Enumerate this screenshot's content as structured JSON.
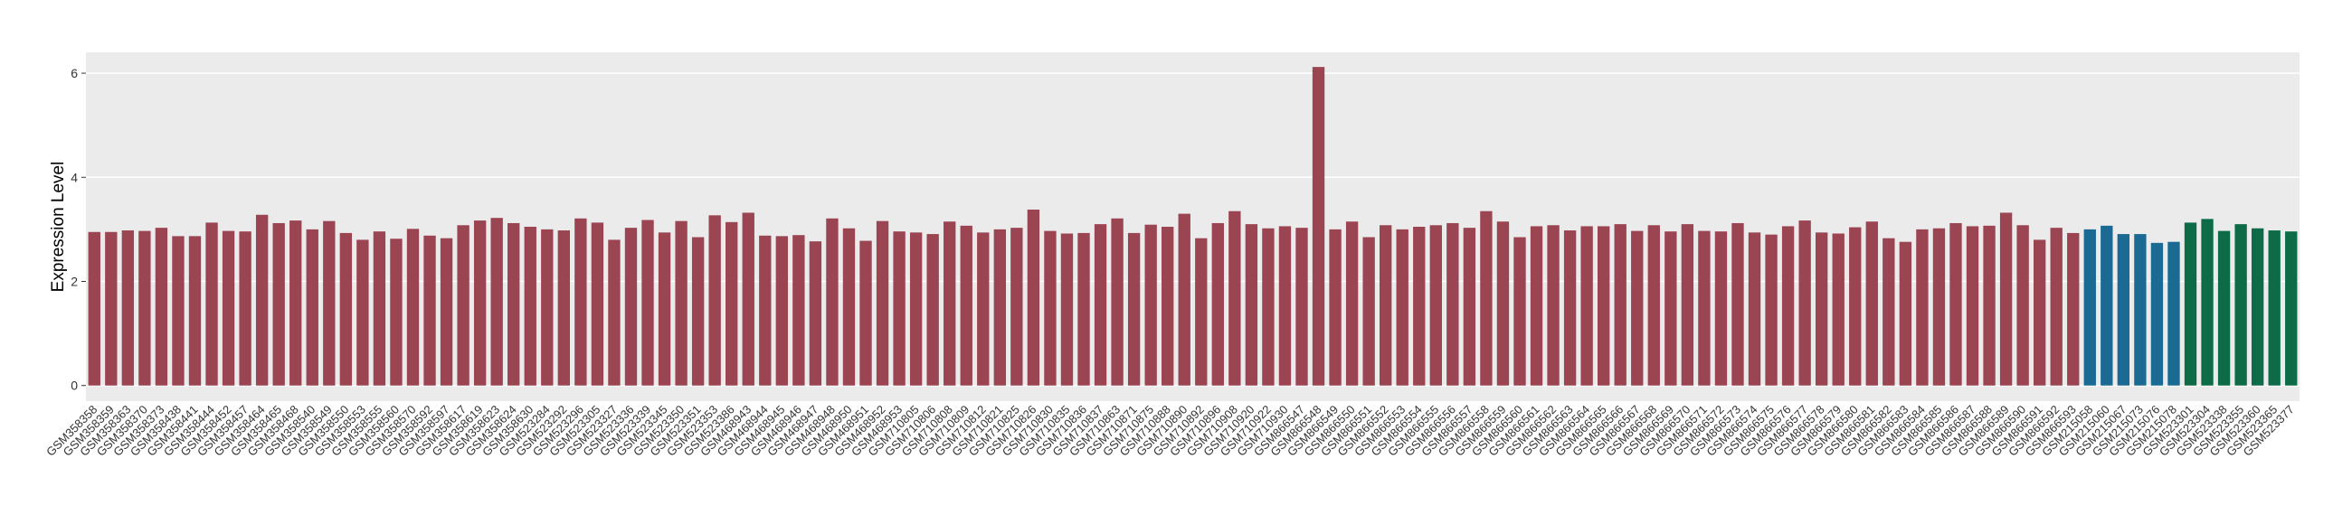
{
  "chart_data": {
    "type": "bar",
    "y_label": "Expression Level",
    "categories": [
      "GSM358358",
      "GSM358359",
      "GSM358363",
      "GSM358370",
      "GSM358373",
      "GSM358438",
      "GSM358441",
      "GSM358444",
      "GSM358452",
      "GSM358457",
      "GSM358464",
      "GSM358465",
      "GSM358468",
      "GSM358540",
      "GSM358549",
      "GSM358550",
      "GSM358553",
      "GSM358555",
      "GSM358560",
      "GSM358570",
      "GSM358592",
      "GSM358597",
      "GSM358617",
      "GSM358619",
      "GSM358623",
      "GSM358624",
      "GSM358630",
      "GSM523284",
      "GSM523292",
      "GSM523296",
      "GSM523305",
      "GSM523327",
      "GSM523336",
      "GSM523339",
      "GSM523345",
      "GSM523350",
      "GSM523351",
      "GSM523353",
      "GSM523386",
      "GSM468943",
      "GSM468944",
      "GSM468945",
      "GSM468946",
      "GSM468947",
      "GSM468948",
      "GSM468950",
      "GSM468951",
      "GSM468952",
      "GSM468953",
      "GSM710805",
      "GSM710806",
      "GSM710808",
      "GSM710809",
      "GSM710812",
      "GSM710821",
      "GSM710825",
      "GSM710826",
      "GSM710830",
      "GSM710835",
      "GSM710836",
      "GSM710837",
      "GSM710863",
      "GSM710871",
      "GSM710875",
      "GSM710888",
      "GSM710890",
      "GSM710892",
      "GSM710896",
      "GSM710908",
      "GSM710920",
      "GSM710922",
      "GSM710930",
      "GSM866547",
      "GSM866548",
      "GSM866549",
      "GSM866550",
      "GSM866551",
      "GSM866552",
      "GSM866553",
      "GSM866554",
      "GSM866555",
      "GSM866556",
      "GSM866557",
      "GSM866558",
      "GSM866559",
      "GSM866560",
      "GSM866561",
      "GSM866562",
      "GSM866563",
      "GSM866564",
      "GSM866565",
      "GSM866566",
      "GSM866567",
      "GSM866568",
      "GSM866569",
      "GSM866570",
      "GSM866571",
      "GSM866572",
      "GSM866573",
      "GSM866574",
      "GSM866575",
      "GSM866576",
      "GSM866577",
      "GSM866578",
      "GSM866579",
      "GSM866580",
      "GSM866581",
      "GSM866582",
      "GSM866583",
      "GSM866584",
      "GSM866585",
      "GSM866586",
      "GSM866587",
      "GSM866588",
      "GSM866589",
      "GSM866590",
      "GSM866591",
      "GSM866592",
      "GSM866593",
      "GSM215058",
      "GSM215060",
      "GSM215067",
      "GSM215073",
      "GSM215076",
      "GSM215078",
      "GSM523301",
      "GSM523304",
      "GSM523338",
      "GSM523355",
      "GSM523360",
      "GSM523365",
      "GSM523377"
    ],
    "values": [
      2.95,
      2.95,
      2.98,
      2.97,
      3.03,
      2.87,
      2.87,
      3.13,
      2.97,
      2.96,
      3.28,
      3.12,
      3.17,
      3.0,
      3.16,
      2.93,
      2.8,
      2.96,
      2.82,
      3.01,
      2.88,
      2.83,
      3.08,
      3.17,
      3.22,
      3.12,
      3.05,
      3.0,
      2.98,
      3.21,
      3.13,
      2.8,
      3.03,
      3.18,
      2.94,
      3.16,
      2.85,
      3.27,
      3.14,
      3.32,
      2.88,
      2.87,
      2.89,
      2.77,
      3.21,
      3.02,
      2.78,
      3.16,
      2.96,
      2.94,
      2.91,
      3.15,
      3.07,
      2.94,
      3.0,
      3.03,
      3.38,
      2.97,
      2.92,
      2.93,
      3.1,
      3.21,
      2.93,
      3.09,
      3.05,
      3.3,
      2.83,
      3.12,
      3.35,
      3.1,
      3.02,
      3.06,
      3.03,
      6.12,
      3.0,
      3.15,
      2.85,
      3.08,
      3.0,
      3.05,
      3.08,
      3.12,
      3.03,
      3.35,
      3.15,
      2.85,
      3.06,
      3.08,
      2.98,
      3.06,
      3.06,
      3.1,
      2.97,
      3.08,
      2.96,
      3.1,
      2.97,
      2.96,
      3.12,
      2.94,
      2.9,
      3.06,
      3.17,
      2.94,
      2.92,
      3.04,
      3.15,
      2.83,
      2.76,
      3.0,
      3.02,
      3.12,
      3.06,
      3.07,
      3.32,
      3.08,
      2.8,
      3.03,
      2.93,
      3.0,
      3.07,
      2.91,
      2.91,
      2.74,
      2.76,
      3.13,
      3.2,
      2.97,
      3.1,
      3.02,
      2.98,
      2.96
    ],
    "colors": [
      "#9b4452",
      "#9b4452",
      "#9b4452",
      "#9b4452",
      "#9b4452",
      "#9b4452",
      "#9b4452",
      "#9b4452",
      "#9b4452",
      "#9b4452",
      "#9b4452",
      "#9b4452",
      "#9b4452",
      "#9b4452",
      "#9b4452",
      "#9b4452",
      "#9b4452",
      "#9b4452",
      "#9b4452",
      "#9b4452",
      "#9b4452",
      "#9b4452",
      "#9b4452",
      "#9b4452",
      "#9b4452",
      "#9b4452",
      "#9b4452",
      "#9b4452",
      "#9b4452",
      "#9b4452",
      "#9b4452",
      "#9b4452",
      "#9b4452",
      "#9b4452",
      "#9b4452",
      "#9b4452",
      "#9b4452",
      "#9b4452",
      "#9b4452",
      "#9b4452",
      "#9b4452",
      "#9b4452",
      "#9b4452",
      "#9b4452",
      "#9b4452",
      "#9b4452",
      "#9b4452",
      "#9b4452",
      "#9b4452",
      "#9b4452",
      "#9b4452",
      "#9b4452",
      "#9b4452",
      "#9b4452",
      "#9b4452",
      "#9b4452",
      "#9b4452",
      "#9b4452",
      "#9b4452",
      "#9b4452",
      "#9b4452",
      "#9b4452",
      "#9b4452",
      "#9b4452",
      "#9b4452",
      "#9b4452",
      "#9b4452",
      "#9b4452",
      "#9b4452",
      "#9b4452",
      "#9b4452",
      "#9b4452",
      "#9b4452",
      "#9b4452",
      "#9b4452",
      "#9b4452",
      "#9b4452",
      "#9b4452",
      "#9b4452",
      "#9b4452",
      "#9b4452",
      "#9b4452",
      "#9b4452",
      "#9b4452",
      "#9b4452",
      "#9b4452",
      "#9b4452",
      "#9b4452",
      "#9b4452",
      "#9b4452",
      "#9b4452",
      "#9b4452",
      "#9b4452",
      "#9b4452",
      "#9b4452",
      "#9b4452",
      "#9b4452",
      "#9b4452",
      "#9b4452",
      "#9b4452",
      "#9b4452",
      "#9b4452",
      "#9b4452",
      "#9b4452",
      "#9b4452",
      "#9b4452",
      "#9b4452",
      "#9b4452",
      "#9b4452",
      "#9b4452",
      "#9b4452",
      "#9b4452",
      "#9b4452",
      "#9b4452",
      "#9b4452",
      "#9b4452",
      "#9b4452",
      "#9b4452",
      "#9b4452",
      "#1a6a93",
      "#1a6a93",
      "#1a6a93",
      "#1a6a93",
      "#1a6a93",
      "#1a6a93",
      "#0d6b48",
      "#0d6b48",
      "#0d6b48",
      "#0d6b48",
      "#0d6b48",
      "#0d6b48",
      "#0d6b48"
    ],
    "ylim": [
      -0.3,
      6.4
    ],
    "yticks": [
      0,
      2,
      4,
      6
    ],
    "grid": true
  }
}
